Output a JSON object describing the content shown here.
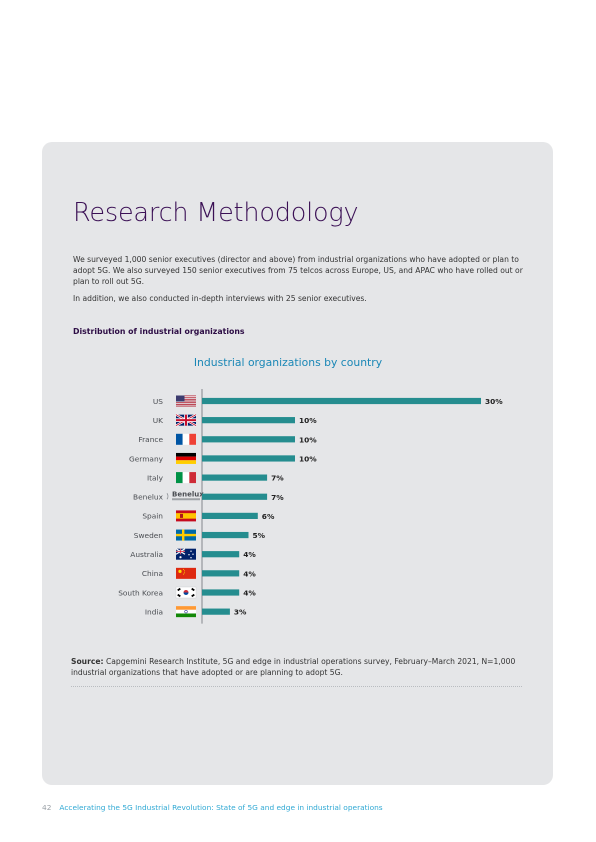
{
  "page": {
    "title": "Research Methodology",
    "paragraph1": "We surveyed 1,000 senior executives (director and above) from industrial organizations who have adopted or plan to adopt 5G. We also surveyed 150 senior executives from 75 telcos across Europe, US, and APAC who have rolled out or plan to roll out 5G.",
    "paragraph2": "In addition, we also conducted in-depth interviews with 25 senior executives.",
    "section_heading": "Distribution of industrial organizations",
    "source_label": "Source:",
    "source_text": "Capgemini Research Institute, 5G and edge in industrial operations survey, February–March 2021, N=1,000 industrial organizations that have adopted or are planning to adopt 5G.",
    "page_number": "42",
    "footer_text": "Accelerating the 5G Industrial Revolution: State of 5G and edge in industrial operations"
  },
  "colors": {
    "panel": "#e5e6e8",
    "title": "#3b1055",
    "chart_title": "#1a87b6",
    "bar": "#258d8f",
    "footer_text": "#31a9d4"
  },
  "chart_data": {
    "type": "bar",
    "orientation": "horizontal",
    "title": "Industrial organizations by country",
    "categories": [
      "US",
      "UK",
      "France",
      "Germany",
      "Italy",
      "Benelux",
      "Spain",
      "Sweden",
      "Australia",
      "China",
      "South Korea",
      "India"
    ],
    "values": [
      30,
      10,
      10,
      10,
      7,
      7,
      6,
      5,
      4,
      4,
      4,
      3
    ],
    "value_labels": [
      "30%",
      "10%",
      "10%",
      "10%",
      "7%",
      "7%",
      "6%",
      "5%",
      "4%",
      "4%",
      "4%",
      "3%"
    ],
    "flag_icons": [
      "us-flag-icon",
      "uk-flag-icon",
      "france-flag-icon",
      "germany-flag-icon",
      "italy-flag-icon",
      "benelux-logo-icon",
      "spain-flag-icon",
      "sweden-flag-icon",
      "australia-flag-icon",
      "china-flag-icon",
      "south-korea-flag-icon",
      "india-flag-icon"
    ],
    "benelux_logo_text": "Benelux",
    "unit": "%",
    "xlim": [
      0,
      30
    ],
    "grid": false,
    "legend": "none"
  }
}
